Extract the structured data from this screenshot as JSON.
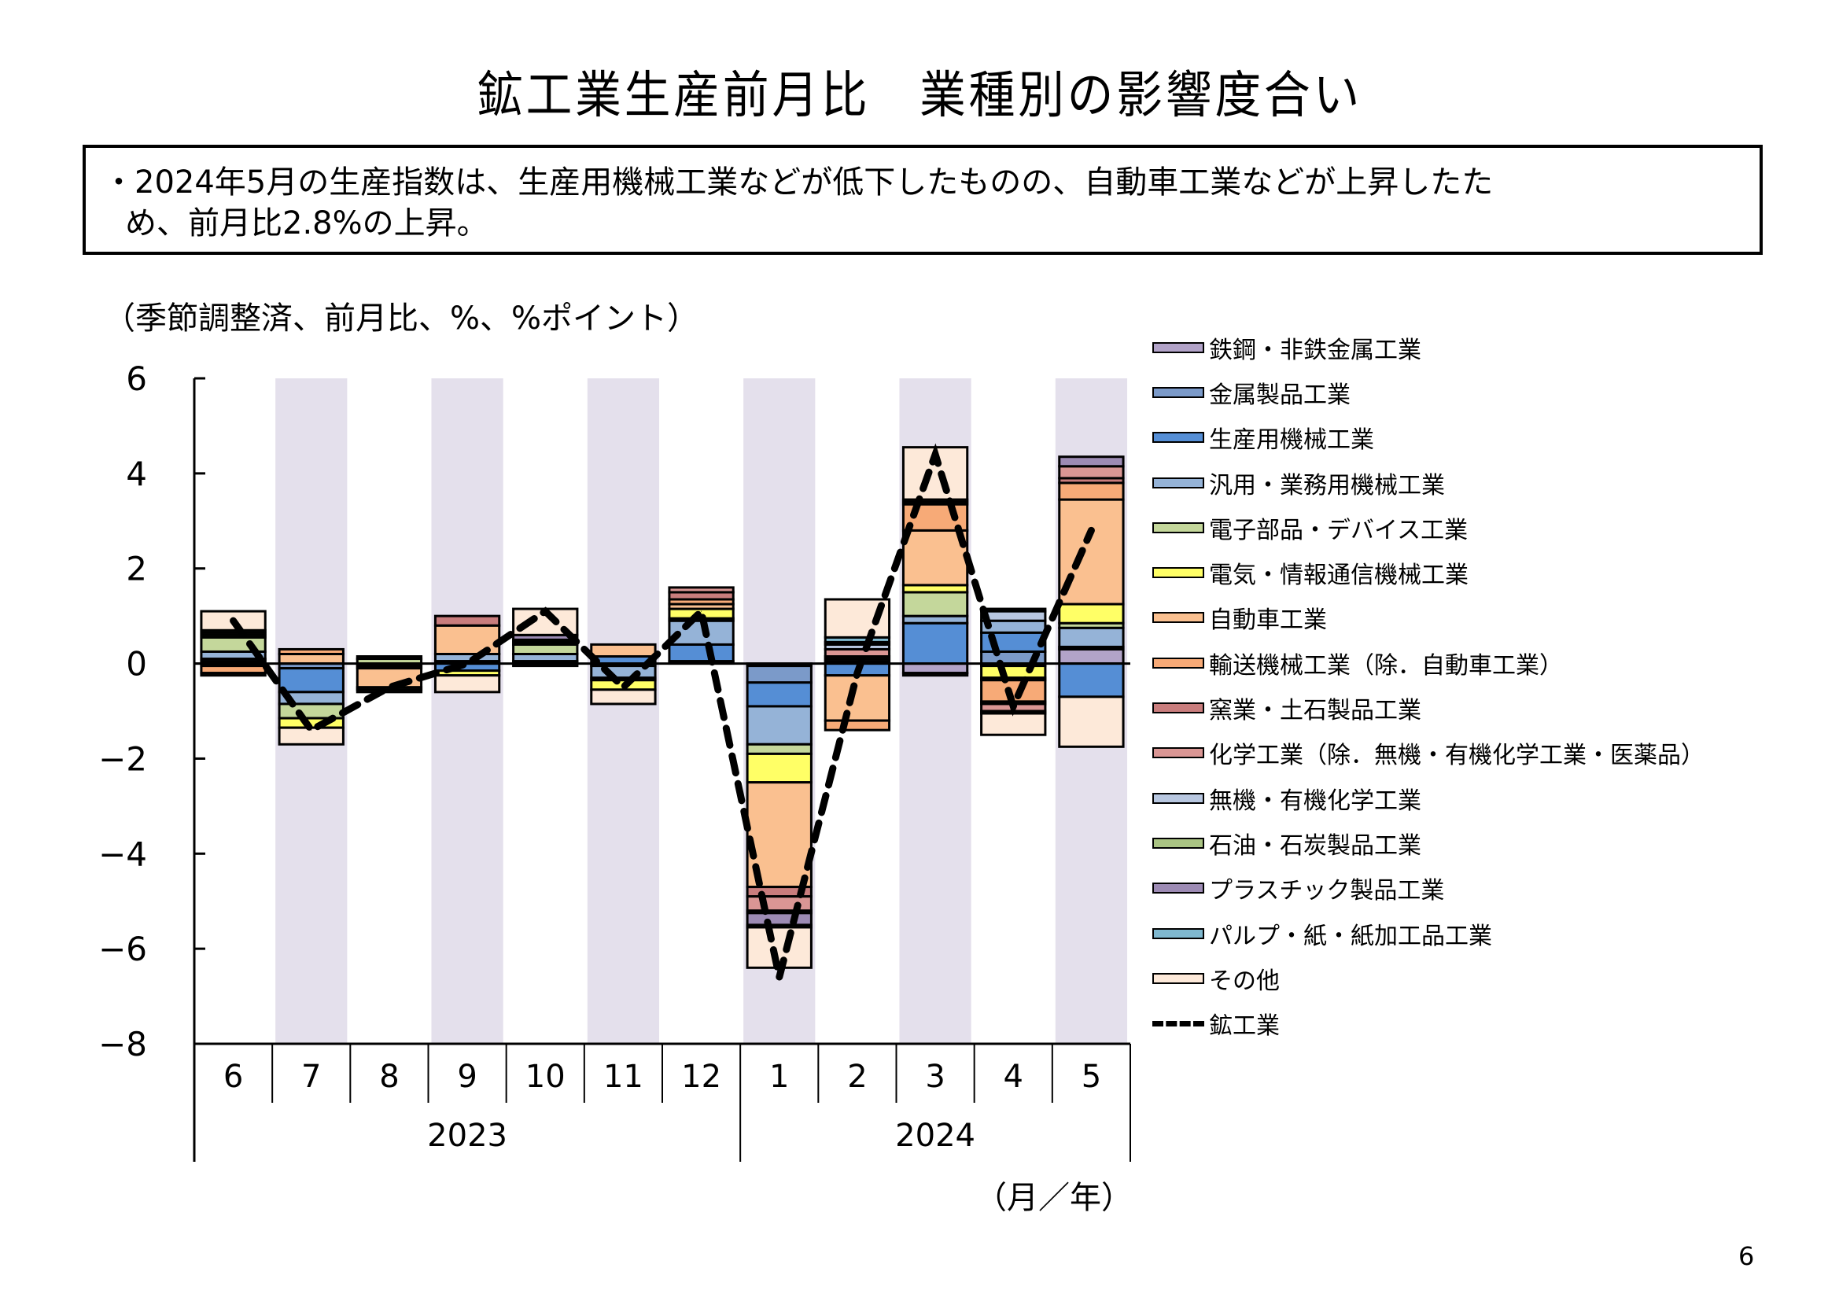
{
  "page": {
    "title": "鉱工業生産前月比　業種別の影響度合い",
    "summary_lines": [
      "・2024年5月の生産指数は、生産用機械工業などが低下したものの、自動車工業などが上昇したた",
      "め、前月比2.8%の上昇。"
    ],
    "unit_label": "（季節調整済、前月比、%、%ポイント）",
    "x_unit_label": "（月／年）",
    "page_number": "6"
  },
  "chart_data": {
    "type": "bar",
    "stacked": true,
    "title": "鉱工業生産前月比　業種別の影響度合い",
    "xlabel": "（月／年）",
    "ylabel": "（季節調整済、前月比、%、%ポイント）",
    "ylim": [
      -8,
      6
    ],
    "yticks": [
      6,
      4,
      2,
      0,
      -2,
      -4,
      -6,
      -8
    ],
    "ytick_labels": [
      "6",
      "4",
      "2",
      "0",
      "−2",
      "−4",
      "−6",
      "−8"
    ],
    "categories": [
      "6",
      "7",
      "8",
      "9",
      "10",
      "11",
      "12",
      "1",
      "2",
      "3",
      "4",
      "5"
    ],
    "year_groups": [
      {
        "label": "2023",
        "start": 0,
        "end": 6
      },
      {
        "label": "2024",
        "start": 7,
        "end": 11
      }
    ],
    "shaded_categories": [
      1,
      3,
      5,
      7,
      9,
      11
    ],
    "shade_color": "#e4e0ec",
    "legend_position": "right",
    "series": [
      {
        "name": "鉄鋼・非鉄金属工業",
        "color": "#b2a3c8",
        "values": [
          0.0,
          0.0,
          0.0,
          0.0,
          0.0,
          0.0,
          0.0,
          -0.05,
          0.0,
          -0.2,
          0.0,
          0.3
        ]
      },
      {
        "name": "金属製品工業",
        "color": "#7b9ac9",
        "values": [
          0.05,
          -0.1,
          -0.05,
          0.05,
          0.05,
          -0.05,
          0.05,
          -0.35,
          0.05,
          0.0,
          0.25,
          0.05
        ]
      },
      {
        "name": "生産用機械工業",
        "color": "#558ed5",
        "values": [
          0.05,
          -0.5,
          -0.05,
          -0.15,
          0.0,
          0.15,
          0.35,
          -0.5,
          -0.25,
          0.85,
          0.4,
          -0.7
        ]
      },
      {
        "name": "汎用・業務用機械工業",
        "color": "#95b3d7",
        "values": [
          0.15,
          -0.25,
          0.0,
          0.15,
          0.15,
          -0.25,
          0.5,
          -0.8,
          0.0,
          0.15,
          0.25,
          0.4
        ]
      },
      {
        "name": "電子部品・デバイス工業",
        "color": "#c4d79b",
        "values": [
          0.3,
          -0.3,
          0.1,
          0.0,
          0.2,
          -0.05,
          0.05,
          -0.2,
          0.05,
          0.5,
          -0.05,
          0.1
        ]
      },
      {
        "name": "電気・情報通信機械工業",
        "color": "#ffff66",
        "values": [
          0.05,
          -0.2,
          0.0,
          -0.1,
          0.05,
          -0.2,
          0.2,
          -0.6,
          0.0,
          0.15,
          -0.25,
          0.4
        ]
      },
      {
        "name": "自動車工業",
        "color": "#fac090",
        "values": [
          -0.05,
          0.2,
          -0.4,
          0.6,
          0.05,
          0.25,
          0.1,
          -2.2,
          -0.95,
          1.15,
          -0.05,
          2.2
        ]
      },
      {
        "name": "輸送機械工業（除．自動車工業）",
        "color": "#f7aa77",
        "values": [
          -0.15,
          0.1,
          0.0,
          0.0,
          -0.05,
          0.0,
          0.1,
          0.0,
          -0.2,
          0.55,
          -0.45,
          0.35
        ]
      },
      {
        "name": "窯業・土石製品工業",
        "color": "#c97d7d",
        "values": [
          0.05,
          0.0,
          0.0,
          0.2,
          0.0,
          0.0,
          0.15,
          -0.2,
          0.05,
          0.05,
          -0.05,
          0.1
        ]
      },
      {
        "name": "化学工業（除．無機・有機化学工業・医薬品）",
        "color": "#da9694",
        "values": [
          0.05,
          0.0,
          -0.05,
          0.0,
          0.0,
          0.0,
          0.1,
          -0.3,
          0.15,
          0.05,
          -0.15,
          0.25
        ]
      },
      {
        "name": "無機・有機化学工業",
        "color": "#b8c7e0",
        "values": [
          0.0,
          0.0,
          0.0,
          0.0,
          0.0,
          0.0,
          0.0,
          0.0,
          0.1,
          0.0,
          0.2,
          0.0
        ]
      },
      {
        "name": "石油・石炭製品工業",
        "color": "#aac483",
        "values": [
          -0.05,
          0.0,
          0.05,
          0.0,
          0.0,
          0.0,
          0.0,
          -0.05,
          0.05,
          -0.05,
          -0.05,
          0.0
        ]
      },
      {
        "name": "プラスチック製品工業",
        "color": "#9d8bb4",
        "values": [
          0.0,
          0.0,
          0.0,
          0.0,
          0.1,
          0.0,
          0.0,
          -0.25,
          0.0,
          0.0,
          0.05,
          0.2
        ]
      },
      {
        "name": "パルプ・紙・紙加工品工業",
        "color": "#7fb8cf",
        "values": [
          0.0,
          0.0,
          0.0,
          0.0,
          0.0,
          0.0,
          0.0,
          -0.05,
          0.1,
          0.0,
          0.0,
          0.0
        ]
      },
      {
        "name": "その他",
        "color": "#fde9d9",
        "values": [
          0.4,
          -0.35,
          -0.05,
          -0.35,
          0.55,
          -0.3,
          0.0,
          -0.85,
          0.8,
          1.1,
          -0.45,
          -1.05
        ]
      }
    ],
    "line_series": {
      "name": "鉱工業",
      "color": "#000000",
      "style": "dashed",
      "values": [
        0.9,
        -1.4,
        -0.5,
        0.0,
        1.1,
        -0.5,
        1.1,
        -6.6,
        -0.2,
        4.4,
        -0.9,
        2.8
      ]
    }
  }
}
